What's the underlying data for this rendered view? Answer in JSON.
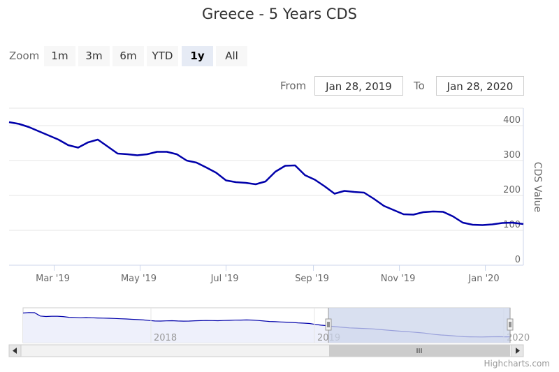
{
  "title": "Greece - 5 Years CDS",
  "zoom": {
    "label": "Zoom",
    "buttons": [
      "1m",
      "3m",
      "6m",
      "YTD",
      "1y",
      "All"
    ],
    "active": "1y"
  },
  "range": {
    "from_label": "From",
    "from_value": "Jan 28, 2019",
    "to_label": "To",
    "to_value": "Jan 28, 2020"
  },
  "credits": "Highcharts.com",
  "colors": {
    "series": "#0000aa",
    "grid": "#e6e6e6",
    "navigator_mask": "#ccd6eb",
    "navigator_fill": "#eef0fb"
  },
  "chart_data": {
    "type": "line",
    "ylabel": "CDS Value",
    "ylim": [
      0,
      450
    ],
    "yticks": [
      "0",
      "100",
      "200",
      "300",
      "400"
    ],
    "xlim": [
      "2019-01-28",
      "2020-01-28"
    ],
    "xticks": [
      "Mar '19",
      "May '19",
      "Jul '19",
      "Sep '19",
      "Nov '19",
      "Jan '20"
    ],
    "grid": true,
    "series": [
      {
        "x": [
          "2019-01-28",
          "2019-02-04",
          "2019-02-11",
          "2019-02-18",
          "2019-02-25",
          "2019-03-04",
          "2019-03-11",
          "2019-03-18",
          "2019-03-25",
          "2019-04-01",
          "2019-04-08",
          "2019-04-15",
          "2019-04-22",
          "2019-04-29",
          "2019-05-06",
          "2019-05-13",
          "2019-05-20",
          "2019-05-27",
          "2019-06-03",
          "2019-06-10",
          "2019-06-17",
          "2019-06-24",
          "2019-07-01",
          "2019-07-08",
          "2019-07-15",
          "2019-07-22",
          "2019-07-29",
          "2019-08-05",
          "2019-08-12",
          "2019-08-19",
          "2019-08-26",
          "2019-09-02",
          "2019-09-09",
          "2019-09-16",
          "2019-09-23",
          "2019-09-30",
          "2019-10-07",
          "2019-10-14",
          "2019-10-21",
          "2019-10-28",
          "2019-11-04",
          "2019-11-11",
          "2019-11-18",
          "2019-11-25",
          "2019-12-02",
          "2019-12-09",
          "2019-12-16",
          "2019-12-23",
          "2019-12-30",
          "2020-01-06",
          "2020-01-13",
          "2020-01-20",
          "2020-01-28"
        ],
        "values": [
          410,
          405,
          396,
          384,
          372,
          360,
          344,
          337,
          352,
          360,
          340,
          320,
          318,
          315,
          318,
          325,
          325,
          318,
          300,
          294,
          280,
          265,
          243,
          238,
          236,
          232,
          240,
          268,
          285,
          286,
          258,
          245,
          226,
          205,
          213,
          210,
          208,
          190,
          170,
          158,
          146,
          145,
          152,
          154,
          153,
          140,
          122,
          116,
          115,
          117,
          121,
          122,
          118
        ]
      }
    ],
    "navigator": {
      "xticks": [
        "2018",
        "2019",
        "2020"
      ],
      "values": [
        600,
        610,
        608,
        540,
        530,
        535,
        535,
        528,
        515,
        512,
        505,
        508,
        505,
        500,
        498,
        494,
        490,
        485,
        480,
        474,
        468,
        460,
        450,
        440,
        438,
        442,
        445,
        440,
        437,
        438,
        444,
        446,
        450,
        448,
        445,
        450,
        452,
        456,
        458,
        460,
        458,
        450,
        440,
        430,
        425,
        420,
        416,
        410,
        402,
        395,
        388,
        370,
        355,
        345,
        330,
        320,
        310,
        300,
        295,
        290,
        285,
        280,
        270,
        260,
        250,
        240,
        232,
        225,
        215,
        205,
        195,
        180,
        165,
        155,
        148,
        140,
        130,
        122,
        118,
        117,
        116,
        118,
        120,
        121,
        119,
        118
      ]
    }
  }
}
